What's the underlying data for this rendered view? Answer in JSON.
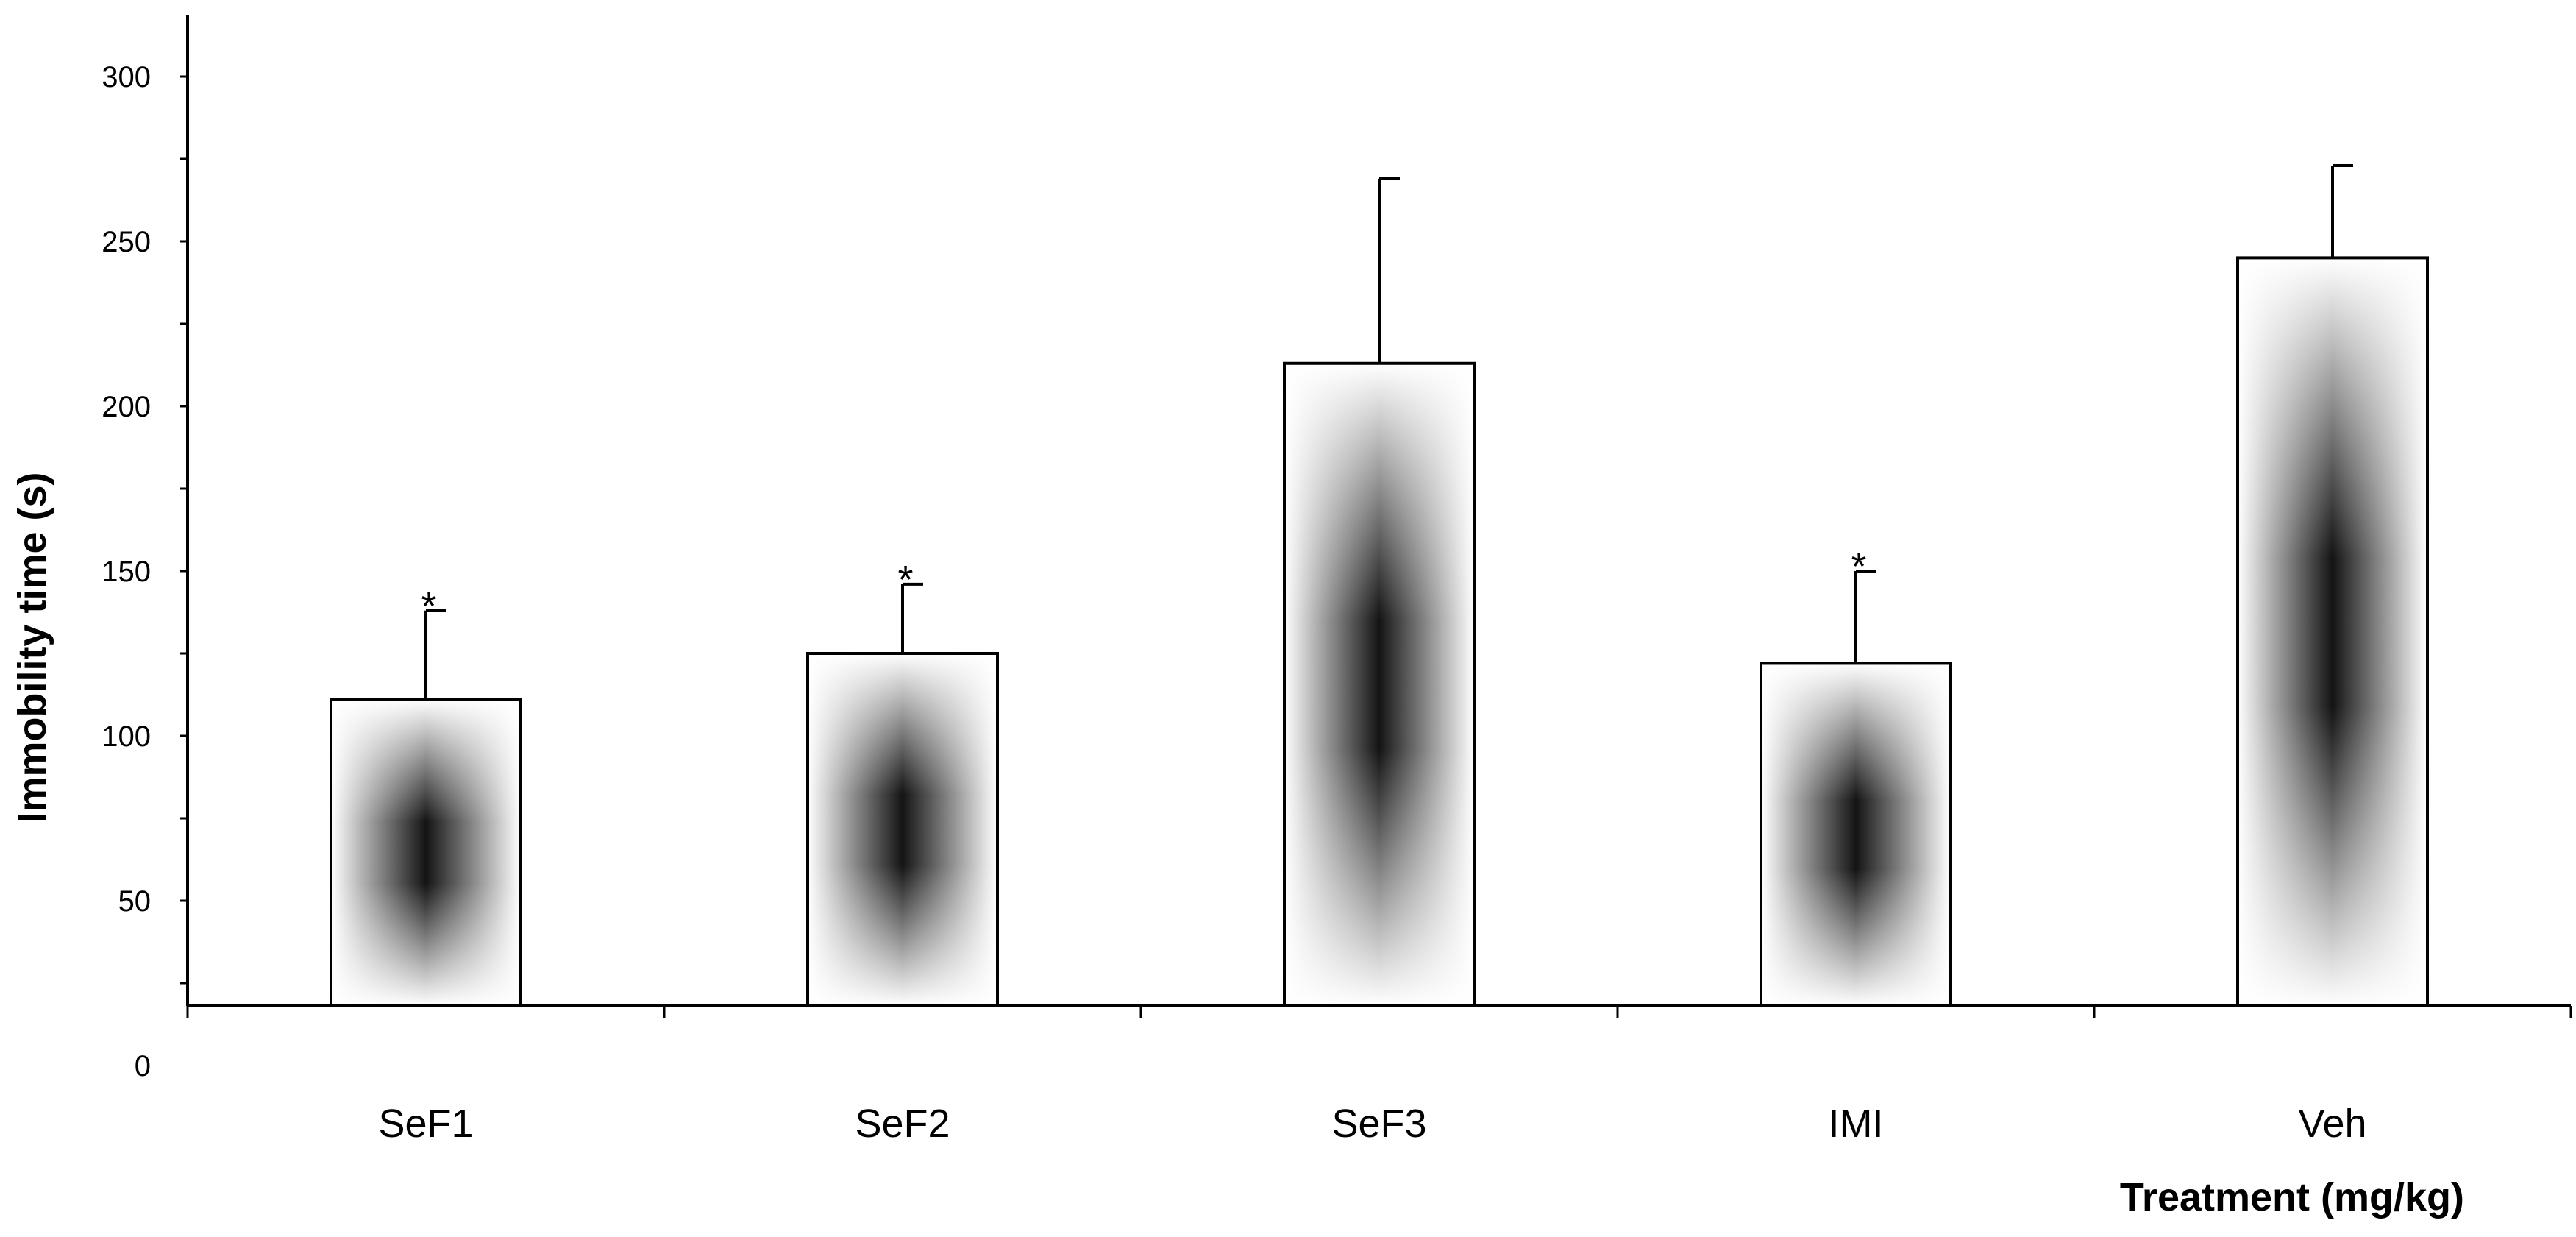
{
  "chart_data": {
    "type": "bar",
    "title": "",
    "xlabel": "Treatment (mg/kg)",
    "ylabel": "Immobility  time (s)",
    "categories": [
      "SeF1",
      "SeF2",
      "SeF3",
      "IMI",
      "Veh"
    ],
    "values": [
      111,
      125,
      213,
      122,
      245
    ],
    "error_upper": [
      138,
      146,
      269,
      150,
      273
    ],
    "significance": [
      "*",
      "*",
      "",
      "*",
      ""
    ],
    "y_ticks": [
      "0",
      "50",
      "100",
      "150",
      "200",
      "250",
      "300"
    ],
    "ylim": [
      0,
      320
    ],
    "grid": false,
    "legend": "none",
    "colors": {
      "bar_outline": "#000000",
      "bar_center": "#141414",
      "bar_edge": "#ffffff",
      "axis": "#000000"
    }
  }
}
